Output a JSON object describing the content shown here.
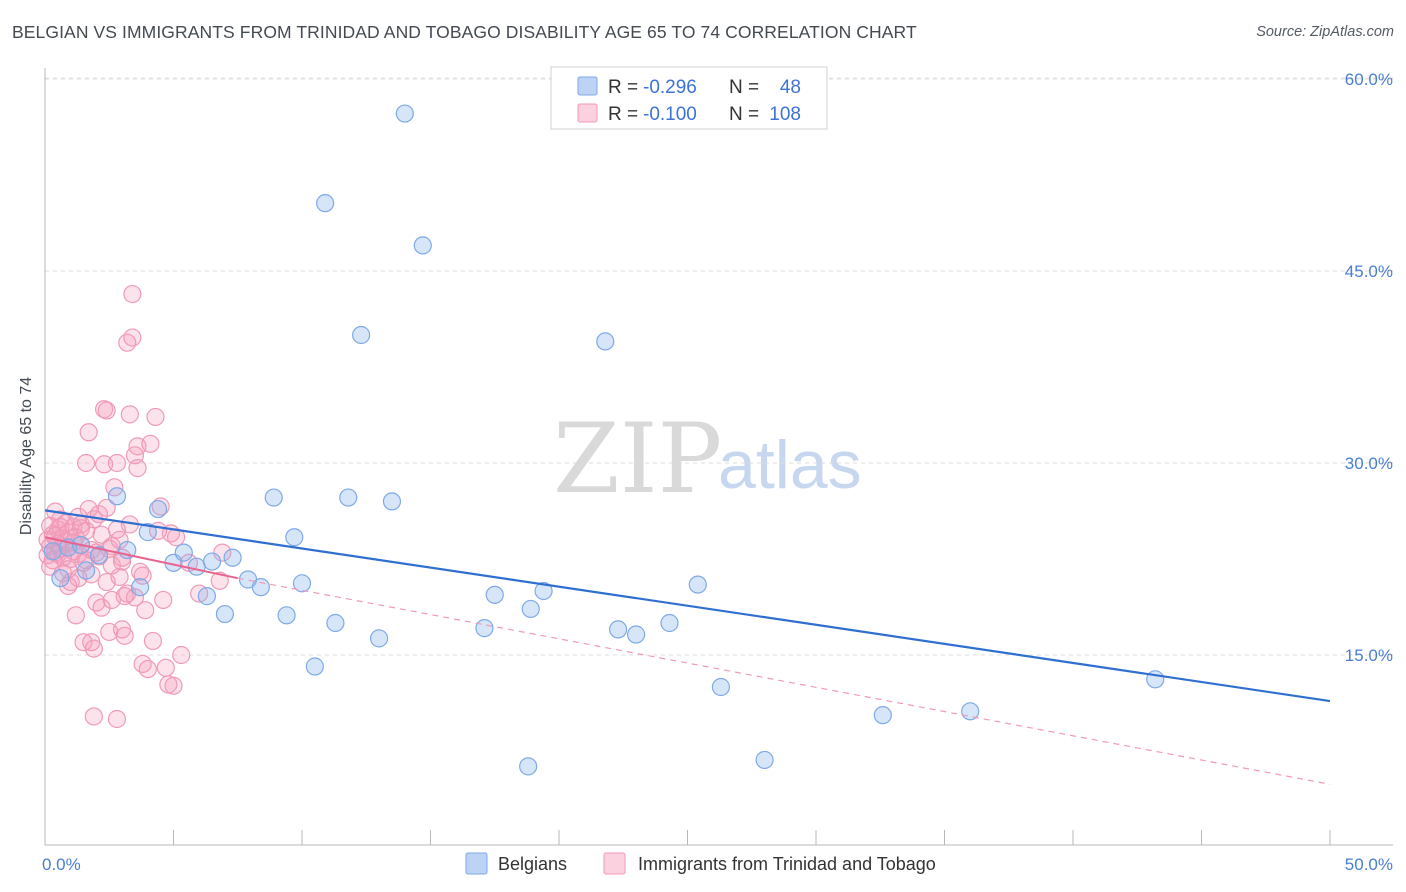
{
  "header": {
    "title": "BELGIAN VS IMMIGRANTS FROM TRINIDAD AND TOBAGO DISABILITY AGE 65 TO 74 CORRELATION CHART",
    "source": "Source: ZipAtlas.com"
  },
  "watermark": {
    "zip": "ZIP",
    "atlas": "atlas"
  },
  "legend": {
    "r_label": "R =",
    "n_label": "N =",
    "rows": [
      {
        "r": "-0.296",
        "n": "48",
        "color": "#7faae6"
      },
      {
        "r": "-0.100",
        "n": "108",
        "color": "#f09ab8"
      }
    ]
  },
  "bottom_legend": [
    {
      "label": "Belgians",
      "color": "#7faae6"
    },
    {
      "label": "Immigrants from Trinidad and Tobago",
      "color": "#f09ab8"
    }
  ],
  "chart_data": {
    "type": "scatter",
    "title": "BELGIAN VS IMMIGRANTS FROM TRINIDAD AND TOBAGO DISABILITY AGE 65 TO 74 CORRELATION CHART",
    "xlabel": "",
    "ylabel": "Disability Age 65 to 74",
    "xlim": [
      0,
      50
    ],
    "ylim": [
      0,
      63
    ],
    "x_tick_labels": [
      {
        "value": 0,
        "label": "0.0%"
      },
      {
        "value": 50,
        "label": "50.0%"
      }
    ],
    "y_tick_labels": [
      {
        "value": 15,
        "label": "15.0%"
      },
      {
        "value": 30,
        "label": "30.0%"
      },
      {
        "value": 45,
        "label": "45.0%"
      },
      {
        "value": 60,
        "label": "60.0%"
      }
    ],
    "grid": true,
    "series": [
      {
        "name": "Belgians",
        "color": "#7faae6",
        "line_color": "#2e6fd0",
        "r": -0.296,
        "n": 48,
        "trend": {
          "x": [
            0,
            50
          ],
          "y": [
            26.3,
            11.4
          ]
        },
        "points": [
          [
            0.3,
            23.1
          ],
          [
            0.6,
            21.0
          ],
          [
            0.9,
            23.4
          ],
          [
            1.4,
            23.6
          ],
          [
            1.6,
            21.6
          ],
          [
            2.1,
            22.8
          ],
          [
            2.8,
            27.4
          ],
          [
            3.2,
            23.2
          ],
          [
            3.7,
            20.3
          ],
          [
            4.0,
            24.6
          ],
          [
            4.4,
            26.4
          ],
          [
            5.0,
            22.2
          ],
          [
            5.4,
            23.0
          ],
          [
            5.9,
            21.9
          ],
          [
            6.3,
            19.6
          ],
          [
            6.5,
            22.3
          ],
          [
            7.0,
            18.2
          ],
          [
            7.3,
            22.6
          ],
          [
            7.9,
            20.9
          ],
          [
            8.4,
            20.3
          ],
          [
            8.9,
            27.3
          ],
          [
            9.4,
            18.1
          ],
          [
            9.7,
            24.2
          ],
          [
            10.0,
            20.6
          ],
          [
            10.5,
            14.1
          ],
          [
            10.9,
            50.3
          ],
          [
            11.3,
            17.5
          ],
          [
            11.8,
            27.3
          ],
          [
            12.3,
            40.0
          ],
          [
            13.0,
            16.3
          ],
          [
            13.5,
            27.0
          ],
          [
            14.0,
            57.3
          ],
          [
            14.7,
            47.0
          ],
          [
            17.1,
            17.1
          ],
          [
            17.5,
            19.7
          ],
          [
            18.8,
            6.3
          ],
          [
            18.9,
            18.6
          ],
          [
            19.4,
            20.0
          ],
          [
            21.8,
            39.5
          ],
          [
            22.3,
            17.0
          ],
          [
            23.0,
            16.6
          ],
          [
            24.3,
            17.5
          ],
          [
            25.4,
            20.5
          ],
          [
            26.3,
            12.5
          ],
          [
            28.0,
            6.8
          ],
          [
            32.6,
            10.3
          ],
          [
            36.0,
            10.6
          ],
          [
            43.2,
            13.1
          ]
        ]
      },
      {
        "name": "Immigrants from Trinidad and Tobago",
        "color": "#f09ab8",
        "line_color": "#e8648f",
        "r": -0.1,
        "n": 108,
        "trend": {
          "x": [
            0,
            7.5
          ],
          "y": [
            24.2,
            21.0
          ]
        },
        "trend_dashed": {
          "x": [
            7.5,
            50
          ],
          "y": [
            21.0,
            4.9
          ]
        },
        "points": [
          [
            0.1,
            24.0
          ],
          [
            0.1,
            22.8
          ],
          [
            0.2,
            25.1
          ],
          [
            0.2,
            23.5
          ],
          [
            0.3,
            24.4
          ],
          [
            0.3,
            22.4
          ],
          [
            0.4,
            26.2
          ],
          [
            0.4,
            23.0
          ],
          [
            0.5,
            24.8
          ],
          [
            0.5,
            22.9
          ],
          [
            0.5,
            23.7
          ],
          [
            0.6,
            25.6
          ],
          [
            0.6,
            23.3
          ],
          [
            0.7,
            24.1
          ],
          [
            0.7,
            22.6
          ],
          [
            0.8,
            25.3
          ],
          [
            0.8,
            23.9
          ],
          [
            0.9,
            21.7
          ],
          [
            0.9,
            24.6
          ],
          [
            1.0,
            22.5
          ],
          [
            1.0,
            20.7
          ],
          [
            1.1,
            25.0
          ],
          [
            1.1,
            23.1
          ],
          [
            1.2,
            18.1
          ],
          [
            1.2,
            24.2
          ],
          [
            1.3,
            22.9
          ],
          [
            1.3,
            21.0
          ],
          [
            1.4,
            25.2
          ],
          [
            1.4,
            23.6
          ],
          [
            1.5,
            16.0
          ],
          [
            1.5,
            22.2
          ],
          [
            1.6,
            30.0
          ],
          [
            1.6,
            24.7
          ],
          [
            1.7,
            26.4
          ],
          [
            1.7,
            32.4
          ],
          [
            1.8,
            23.2
          ],
          [
            1.8,
            21.3
          ],
          [
            1.9,
            15.5
          ],
          [
            1.9,
            25.6
          ],
          [
            2.0,
            23.0
          ],
          [
            2.0,
            19.1
          ],
          [
            2.1,
            22.7
          ],
          [
            2.2,
            24.4
          ],
          [
            2.2,
            18.7
          ],
          [
            2.3,
            34.2
          ],
          [
            2.3,
            29.9
          ],
          [
            2.4,
            26.5
          ],
          [
            2.4,
            20.7
          ],
          [
            2.5,
            23.3
          ],
          [
            2.5,
            16.8
          ],
          [
            2.6,
            19.3
          ],
          [
            2.6,
            22.0
          ],
          [
            2.7,
            28.1
          ],
          [
            2.8,
            24.8
          ],
          [
            2.8,
            30.0
          ],
          [
            2.9,
            21.1
          ],
          [
            3.0,
            17.0
          ],
          [
            3.0,
            22.3
          ],
          [
            3.1,
            16.5
          ],
          [
            3.2,
            19.8
          ],
          [
            3.3,
            25.2
          ],
          [
            3.3,
            33.8
          ],
          [
            3.4,
            43.2
          ],
          [
            3.4,
            39.8
          ],
          [
            3.5,
            19.5
          ],
          [
            3.6,
            31.3
          ],
          [
            3.6,
            29.6
          ],
          [
            3.7,
            21.5
          ],
          [
            3.8,
            14.3
          ],
          [
            3.9,
            18.5
          ],
          [
            4.0,
            13.9
          ],
          [
            4.1,
            31.5
          ],
          [
            4.2,
            16.1
          ],
          [
            4.3,
            33.6
          ],
          [
            4.4,
            24.7
          ],
          [
            4.6,
            19.3
          ],
          [
            4.7,
            14.0
          ],
          [
            4.8,
            12.7
          ],
          [
            5.0,
            12.6
          ],
          [
            5.1,
            24.2
          ],
          [
            5.3,
            15.0
          ],
          [
            5.6,
            22.2
          ],
          [
            6.0,
            19.8
          ],
          [
            6.8,
            20.8
          ],
          [
            6.9,
            23.0
          ],
          [
            1.9,
            10.2
          ],
          [
            2.8,
            10.0
          ],
          [
            3.2,
            39.4
          ],
          [
            2.4,
            34.1
          ],
          [
            3.0,
            22.6
          ],
          [
            1.3,
            25.8
          ],
          [
            0.9,
            20.4
          ],
          [
            0.4,
            24.3
          ],
          [
            0.7,
            21.4
          ],
          [
            1.1,
            23.8
          ],
          [
            1.6,
            22.4
          ],
          [
            2.1,
            26.0
          ],
          [
            2.9,
            24.0
          ],
          [
            3.5,
            30.6
          ],
          [
            3.8,
            21.2
          ],
          [
            4.5,
            26.6
          ],
          [
            0.2,
            21.9
          ],
          [
            0.6,
            25.0
          ],
          [
            1.4,
            24.9
          ],
          [
            1.8,
            16.0
          ],
          [
            2.6,
            23.5
          ],
          [
            3.1,
            19.6
          ],
          [
            4.9,
            24.5
          ]
        ]
      }
    ]
  }
}
